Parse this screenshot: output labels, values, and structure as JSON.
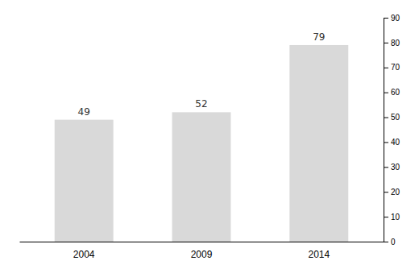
{
  "chart_data": {
    "type": "bar",
    "categories": [
      "2004",
      "2009",
      "2014"
    ],
    "values": [
      49,
      52,
      79
    ],
    "color": "#d9d9d9",
    "ylim": [
      0,
      90
    ],
    "yticks": [
      0,
      10,
      20,
      30,
      40,
      50,
      60,
      70,
      80,
      90
    ],
    "data_labels": true,
    "grid": false
  }
}
